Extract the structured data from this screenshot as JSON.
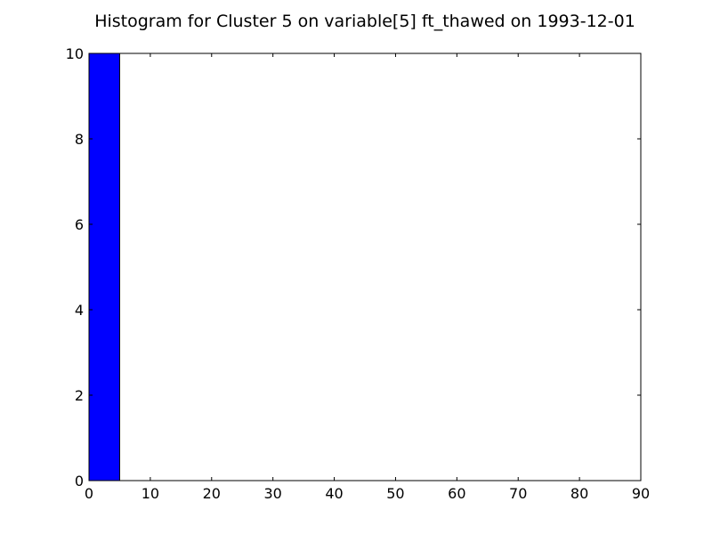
{
  "chart_data": {
    "type": "bar",
    "subtype": "histogram",
    "title": "Histogram for Cluster 5 on variable[5] ft_thawed on 1993-12-01",
    "xlabel": "",
    "ylabel": "",
    "xlim": [
      0,
      90
    ],
    "ylim": [
      0,
      10
    ],
    "xticks": [
      0,
      10,
      20,
      30,
      40,
      50,
      60,
      70,
      80,
      90
    ],
    "yticks": [
      0,
      2,
      4,
      6,
      8,
      10
    ],
    "grid": false,
    "legend": null,
    "bins": [
      {
        "start": 0,
        "end": 5,
        "count": 10
      }
    ],
    "bar_color": "#0000ff",
    "edge_color": "#000000"
  }
}
